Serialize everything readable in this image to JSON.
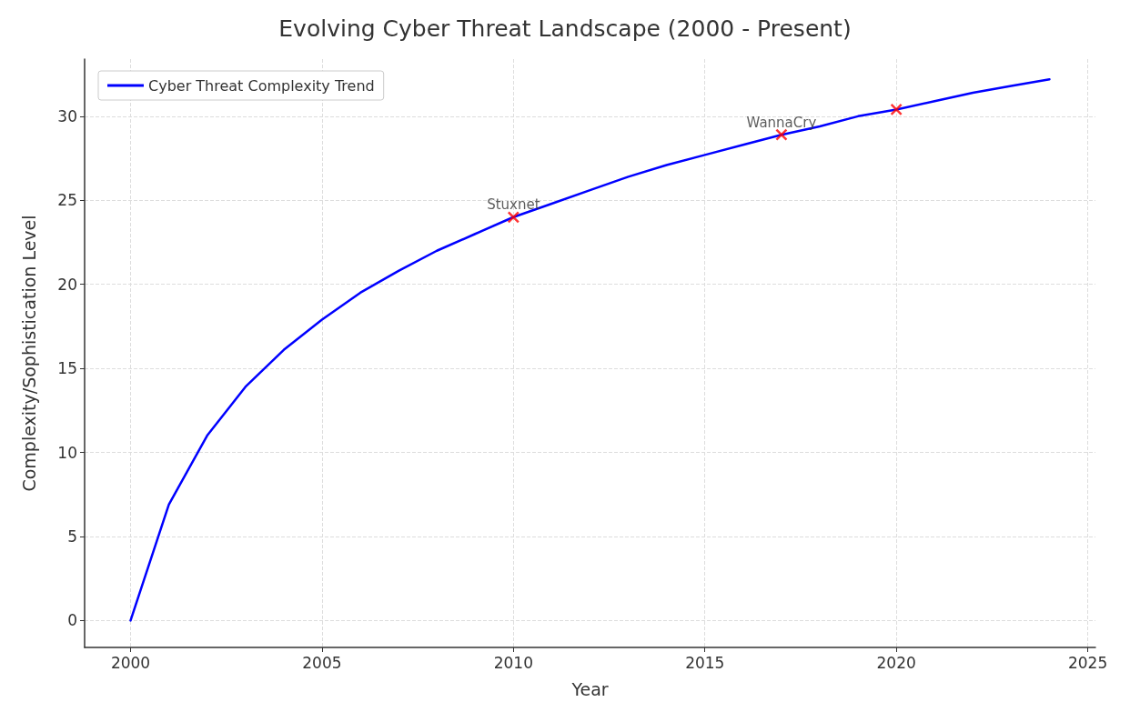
{
  "chart_data": {
    "type": "line",
    "title": "Evolving Cyber Threat Landscape (2000 - Present)",
    "xlabel": "Year",
    "ylabel": "Complexity/Sophistication Level",
    "series": [
      {
        "name": "Cyber Threat Complexity Trend",
        "color": "#0000ff",
        "marker": "none",
        "x": [
          2000,
          2001,
          2002,
          2003,
          2004,
          2005,
          2006,
          2007,
          2008,
          2009,
          2010,
          2011,
          2012,
          2013,
          2014,
          2015,
          2016,
          2017,
          2018,
          2019,
          2020,
          2021,
          2022,
          2023,
          2024
        ],
        "values": [
          0,
          6.9,
          11.0,
          13.9,
          16.1,
          17.9,
          19.5,
          20.8,
          22.0,
          23.0,
          24.0,
          24.8,
          25.6,
          26.4,
          27.1,
          27.7,
          28.3,
          28.9,
          29.4,
          30.0,
          30.4,
          30.9,
          31.4,
          31.8,
          32.2
        ]
      },
      {
        "type": "scatter",
        "color": "#ff0000",
        "marker": "cross",
        "x": [
          2010,
          2017,
          2020
        ],
        "values": [
          24.0,
          28.9,
          30.4
        ]
      }
    ],
    "annotations": [
      {
        "text": "Stuxnet",
        "x": 2010,
        "y": 24.0
      },
      {
        "text": "WannaCry",
        "x": 2017,
        "y": 28.9
      }
    ],
    "xlim": [
      1998.8,
      2025.2
    ],
    "xticks": [
      2000,
      2005,
      2010,
      2015,
      2020,
      2025
    ],
    "ylim": [
      -1.6,
      33.4
    ],
    "yticks": [
      0,
      5,
      10,
      15,
      20,
      25,
      30
    ],
    "grid": true,
    "legend": "top left",
    "line_style": "solid"
  }
}
